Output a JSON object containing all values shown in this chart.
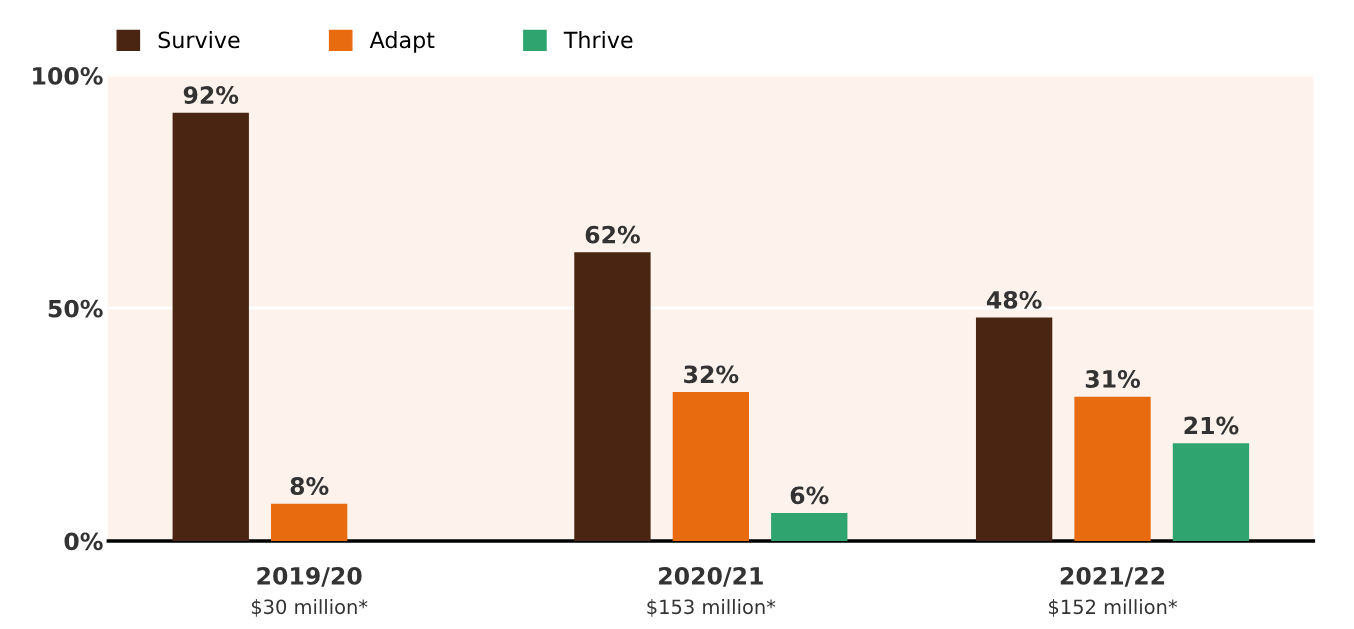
{
  "chart_data": {
    "type": "bar",
    "categories": [
      "2019/20\n$30 million*",
      "2020/21\n$153 million*",
      "2021/22\n$152 million*"
    ],
    "series": [
      {
        "name": "Survive",
        "color": "#4a2511",
        "values": [
          92,
          62,
          48
        ],
        "value_labels": [
          "92%",
          "62%",
          "48%"
        ]
      },
      {
        "name": "Adapt",
        "color": "#e96b10",
        "values": [
          8,
          32,
          31
        ],
        "value_labels": [
          "8%",
          "32%",
          "31%"
        ]
      },
      {
        "name": "Thrive",
        "color": "#2fa46f",
        "values": [
          null,
          6,
          21
        ],
        "value_labels": [
          null,
          "6%",
          "21%"
        ]
      }
    ],
    "ylim": [
      0,
      100
    ],
    "yticks": [
      {
        "value": 0,
        "label": "0%"
      },
      {
        "value": 50,
        "label": "50%"
      },
      {
        "value": 100,
        "label": "100%"
      }
    ],
    "grid": "y",
    "legend": "top left"
  }
}
